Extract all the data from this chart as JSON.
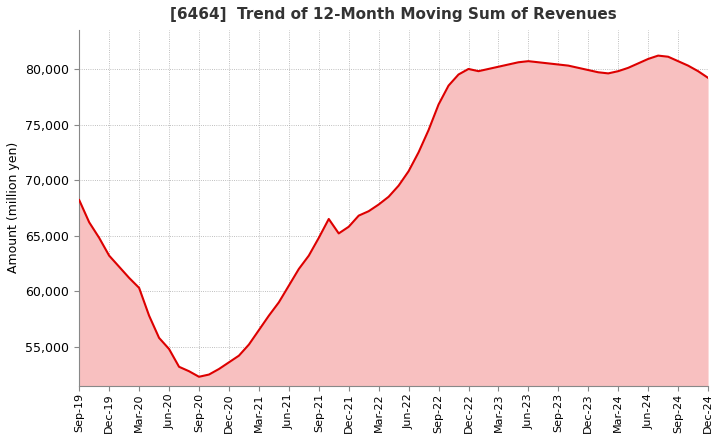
{
  "title": "[6464]  Trend of 12-Month Moving Sum of Revenues",
  "ylabel": "Amount (million yen)",
  "line_color": "#dd0000",
  "fill_color": "#f8c0c0",
  "background_color": "#ffffff",
  "grid_color": "#aaaaaa",
  "ylim": [
    51500,
    83500
  ],
  "yticks": [
    55000,
    60000,
    65000,
    70000,
    75000,
    80000
  ],
  "values": [
    68200,
    66200,
    64800,
    63200,
    62200,
    61200,
    60300,
    57800,
    55800,
    54800,
    53200,
    52800,
    52300,
    52500,
    53000,
    53600,
    54200,
    55200,
    56500,
    57800,
    59000,
    60500,
    62000,
    63200,
    64800,
    66500,
    65200,
    65800,
    66800,
    67200,
    67800,
    68500,
    69500,
    70800,
    72500,
    74500,
    76800,
    78500,
    79500,
    80000,
    79800,
    80000,
    80200,
    80400,
    80600,
    80700,
    80600,
    80500,
    80400,
    80300,
    80100,
    79900,
    79700,
    79600,
    79800,
    80100,
    80500,
    80900,
    81200,
    81100,
    80700,
    80300,
    79800,
    79200
  ],
  "xtick_labels": [
    "Sep-19",
    "Dec-19",
    "Mar-20",
    "Jun-20",
    "Sep-20",
    "Dec-20",
    "Mar-21",
    "Jun-21",
    "Sep-21",
    "Dec-21",
    "Mar-22",
    "Jun-22",
    "Sep-22",
    "Dec-22",
    "Mar-23",
    "Jun-23",
    "Sep-23",
    "Dec-23",
    "Mar-24",
    "Jun-24",
    "Sep-24",
    "Dec-24"
  ],
  "xtick_indices": [
    0,
    3,
    6,
    9,
    12,
    15,
    18,
    21,
    24,
    27,
    30,
    33,
    36,
    39,
    42,
    45,
    48,
    51,
    54,
    57,
    60,
    63
  ]
}
